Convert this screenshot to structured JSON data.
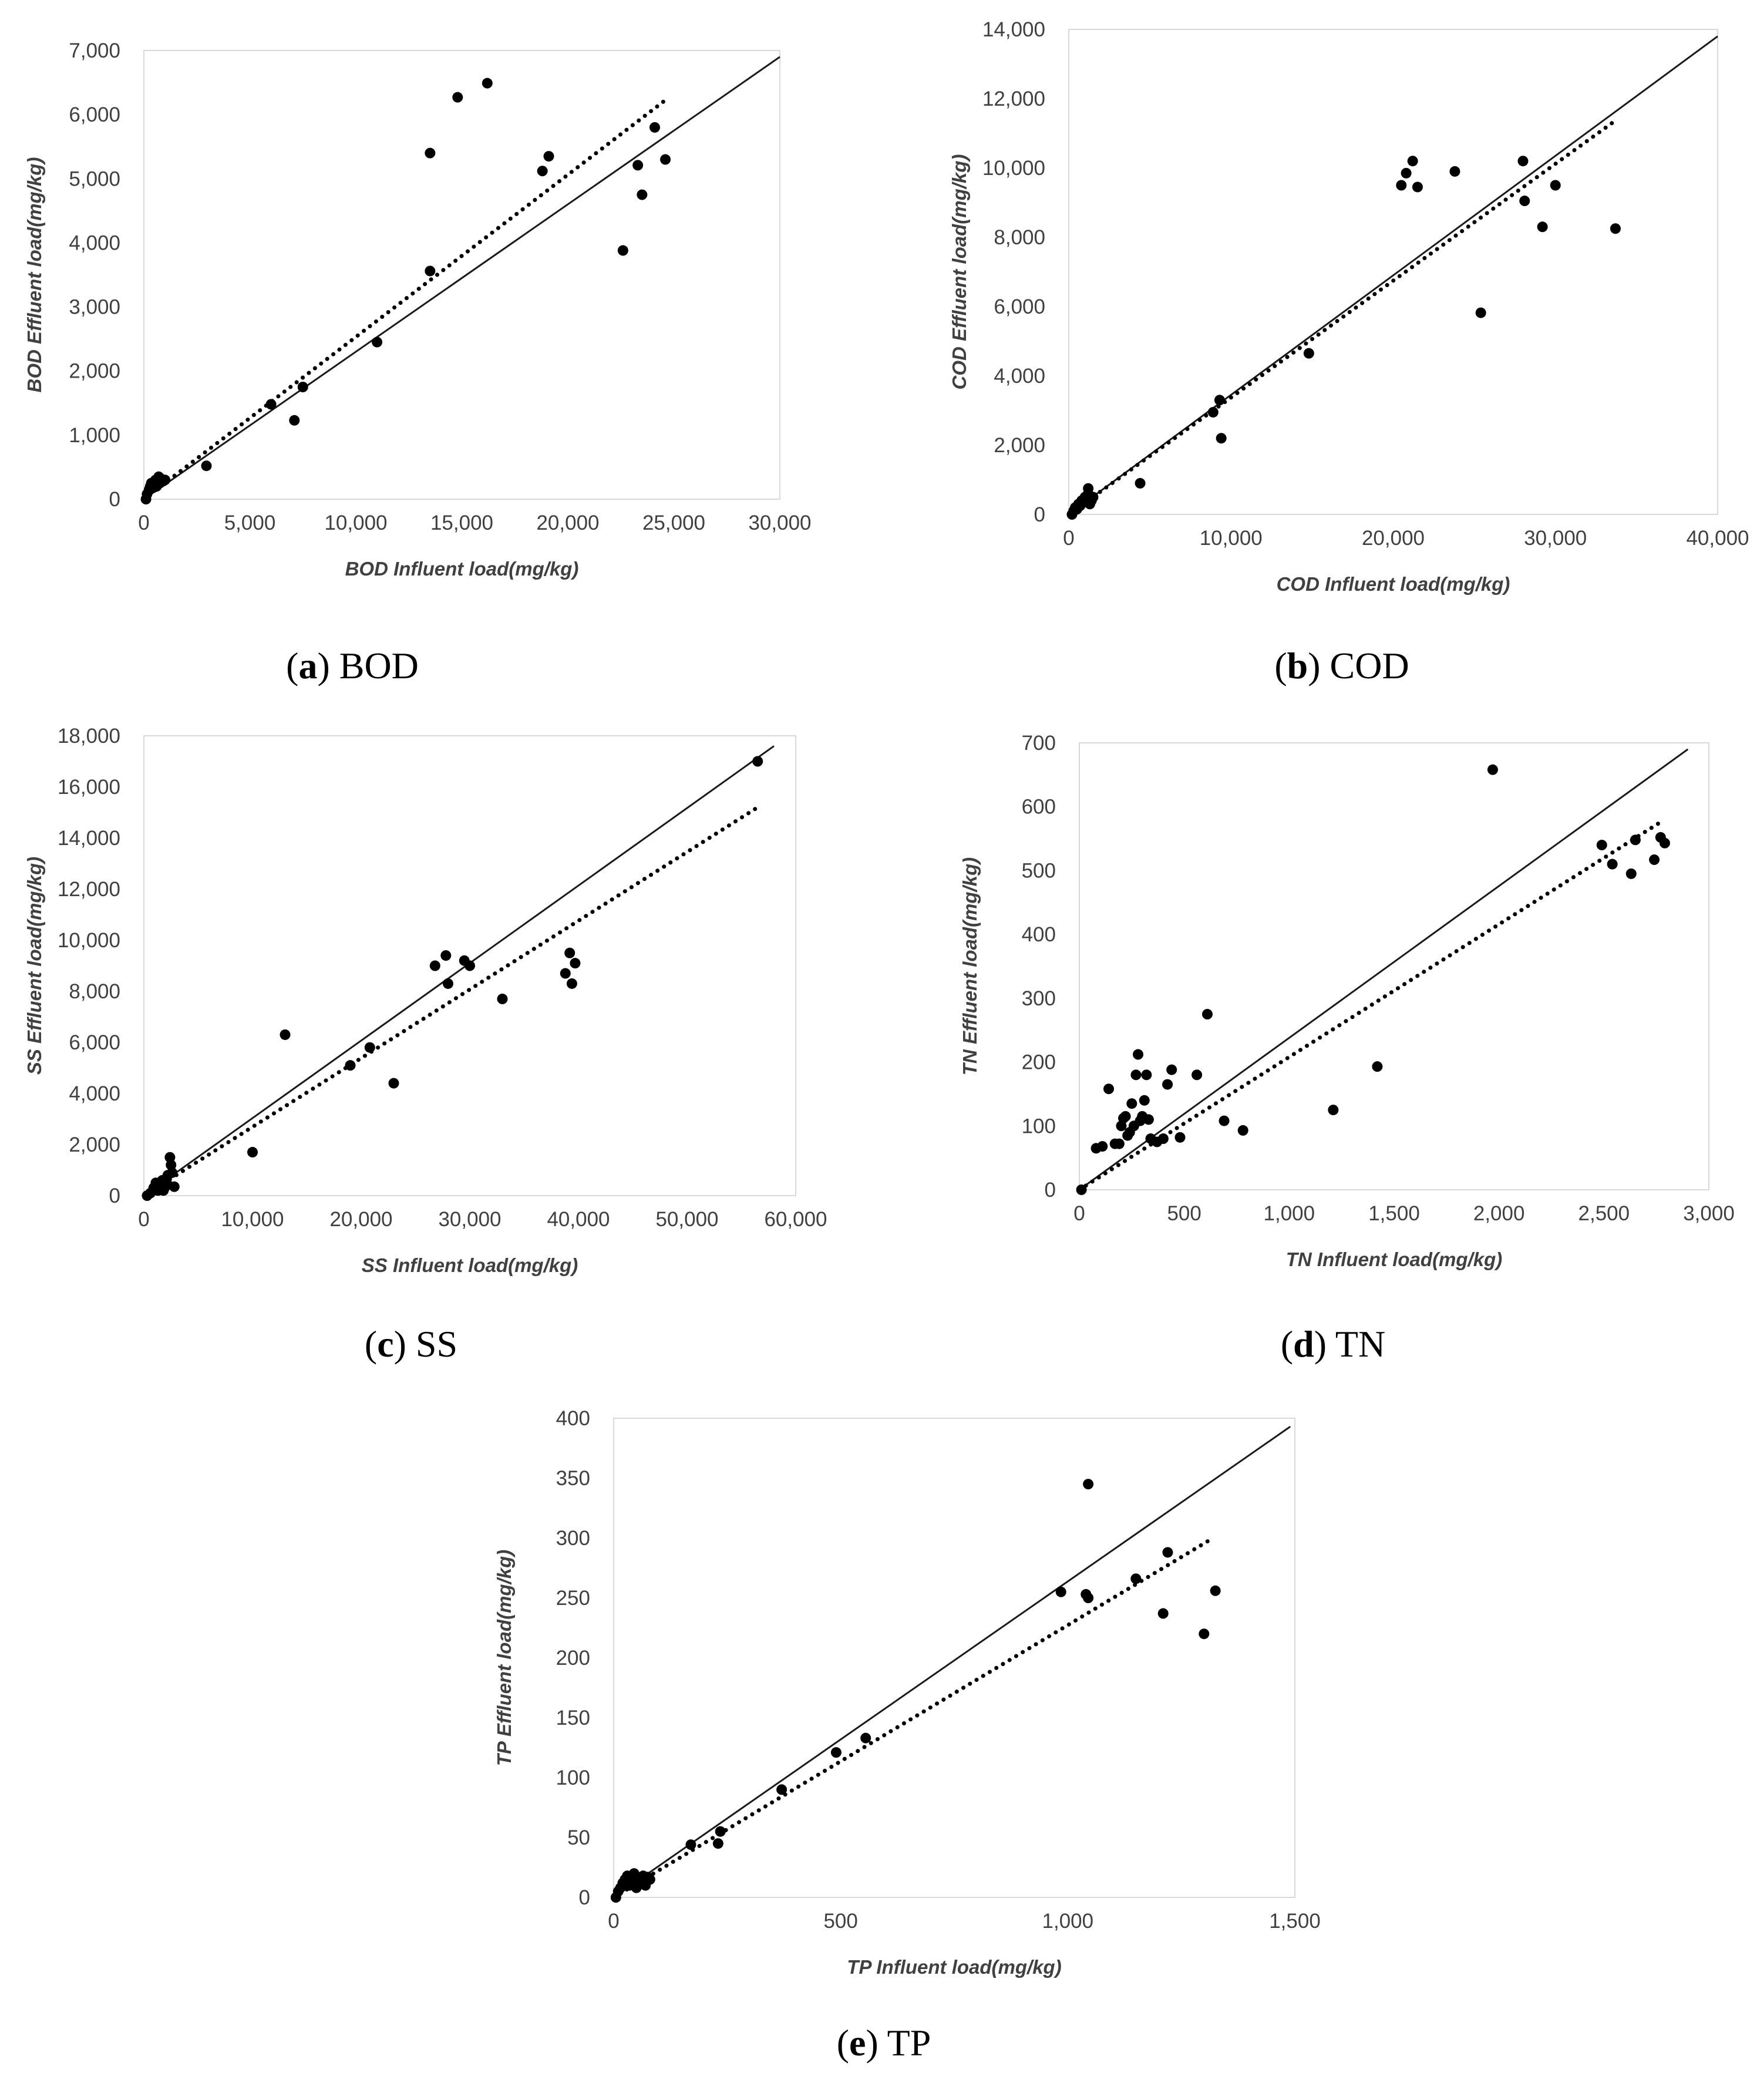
{
  "chart_data": [
    {
      "id": "bod",
      "type": "scatter",
      "caption": {
        "letter": "a",
        "text": "BOD"
      },
      "xlabel": "BOD Influent load(mg/kg)",
      "ylabel": "BOD Effluent load(mg/kg)",
      "xlim": [
        0,
        30000
      ],
      "ylim": [
        0,
        7000
      ],
      "xticks": [
        0,
        5000,
        10000,
        15000,
        20000,
        25000,
        30000
      ],
      "yticks": [
        0,
        1000,
        2000,
        3000,
        4000,
        5000,
        6000,
        7000
      ],
      "xtick_labels": [
        "0",
        "5,000",
        "10,000",
        "15,000",
        "20,000",
        "25,000",
        "30,000"
      ],
      "ytick_labels": [
        "0",
        "1,000",
        "2,000",
        "3,000",
        "4,000",
        "5,000",
        "6,000",
        "7,000"
      ],
      "reference_line": {
        "x": [
          0,
          30000
        ],
        "y": [
          0,
          6900
        ]
      },
      "trend_line": {
        "x": [
          0,
          24500
        ],
        "y": [
          0,
          6200
        ]
      },
      "points": [
        [
          100,
          0
        ],
        [
          150,
          80
        ],
        [
          250,
          150
        ],
        [
          300,
          200
        ],
        [
          350,
          250
        ],
        [
          450,
          180
        ],
        [
          500,
          250
        ],
        [
          550,
          300
        ],
        [
          600,
          200
        ],
        [
          650,
          280
        ],
        [
          700,
          350
        ],
        [
          750,
          250
        ],
        [
          800,
          320
        ],
        [
          900,
          280
        ],
        [
          1000,
          300
        ],
        [
          2950,
          520
        ],
        [
          6000,
          1480
        ],
        [
          7100,
          1230
        ],
        [
          7500,
          1750
        ],
        [
          11000,
          2450
        ],
        [
          13500,
          3560
        ],
        [
          13500,
          5400
        ],
        [
          14800,
          6270
        ],
        [
          16200,
          6490
        ],
        [
          18800,
          5120
        ],
        [
          19100,
          5350
        ],
        [
          22600,
          3880
        ],
        [
          23300,
          5210
        ],
        [
          23500,
          4750
        ],
        [
          24100,
          5800
        ],
        [
          24600,
          5300
        ]
      ]
    },
    {
      "id": "cod",
      "type": "scatter",
      "caption": {
        "letter": "b",
        "text": "COD"
      },
      "xlabel": "COD Influent load(mg/kg)",
      "ylabel": "COD Effluent load(mg/kg)",
      "xlim": [
        0,
        40000
      ],
      "ylim": [
        0,
        14000
      ],
      "xticks": [
        0,
        10000,
        20000,
        30000,
        40000
      ],
      "yticks": [
        0,
        2000,
        4000,
        6000,
        8000,
        10000,
        12000,
        14000
      ],
      "xtick_labels": [
        "0",
        "10,000",
        "20,000",
        "30,000",
        "40,000"
      ],
      "ytick_labels": [
        "0",
        "2,000",
        "4,000",
        "6,000",
        "8,000",
        "10,000",
        "12,000",
        "14,000"
      ],
      "reference_line": {
        "x": [
          0,
          40000
        ],
        "y": [
          0,
          13800
        ]
      },
      "trend_line": {
        "x": [
          0,
          33500
        ],
        "y": [
          0,
          11300
        ]
      },
      "points": [
        [
          200,
          0
        ],
        [
          300,
          100
        ],
        [
          400,
          200
        ],
        [
          500,
          150
        ],
        [
          600,
          300
        ],
        [
          700,
          250
        ],
        [
          800,
          400
        ],
        [
          900,
          350
        ],
        [
          1000,
          500
        ],
        [
          1100,
          450
        ],
        [
          1200,
          600
        ],
        [
          1300,
          300
        ],
        [
          1400,
          400
        ],
        [
          1500,
          500
        ],
        [
          1200,
          750
        ],
        [
          4400,
          900
        ],
        [
          8900,
          2950
        ],
        [
          9300,
          3300
        ],
        [
          9400,
          2200
        ],
        [
          14800,
          4650
        ],
        [
          20500,
          9500
        ],
        [
          20800,
          9850
        ],
        [
          21200,
          10200
        ],
        [
          21500,
          9450
        ],
        [
          23800,
          9900
        ],
        [
          25400,
          5820
        ],
        [
          28000,
          10200
        ],
        [
          28100,
          9050
        ],
        [
          29200,
          8300
        ],
        [
          30000,
          9500
        ],
        [
          33700,
          8250
        ]
      ]
    },
    {
      "id": "ss",
      "type": "scatter",
      "caption": {
        "letter": "c",
        "text": "SS"
      },
      "xlabel": "SS Influent load(mg/kg)",
      "ylabel": "SS Effluent load(mg/kg)",
      "xlim": [
        0,
        60000
      ],
      "ylim": [
        0,
        18000
      ],
      "xticks": [
        0,
        10000,
        20000,
        30000,
        40000,
        50000,
        60000
      ],
      "yticks": [
        0,
        2000,
        4000,
        6000,
        8000,
        10000,
        12000,
        14000,
        16000,
        18000
      ],
      "xtick_labels": [
        "0",
        "10,000",
        "20,000",
        "30,000",
        "40,000",
        "50,000",
        "60,000"
      ],
      "ytick_labels": [
        "0",
        "2,000",
        "4,000",
        "6,000",
        "8,000",
        "10,000",
        "12,000",
        "14,000",
        "16,000",
        "18,000"
      ],
      "reference_line": {
        "x": [
          0,
          58000
        ],
        "y": [
          0,
          17600
        ]
      },
      "trend_line": {
        "x": [
          0,
          56500
        ],
        "y": [
          0,
          15200
        ]
      },
      "points": [
        [
          300,
          0
        ],
        [
          600,
          100
        ],
        [
          900,
          300
        ],
        [
          1100,
          500
        ],
        [
          1300,
          200
        ],
        [
          1500,
          400
        ],
        [
          1700,
          600
        ],
        [
          1900,
          300
        ],
        [
          2100,
          500
        ],
        [
          2200,
          800
        ],
        [
          2400,
          1500
        ],
        [
          2500,
          1200
        ],
        [
          2600,
          900
        ],
        [
          2800,
          350
        ],
        [
          1800,
          200
        ],
        [
          10000,
          1700
        ],
        [
          13000,
          6300
        ],
        [
          19000,
          5100
        ],
        [
          20800,
          5800
        ],
        [
          23000,
          4400
        ],
        [
          26800,
          9000
        ],
        [
          27800,
          9400
        ],
        [
          28000,
          8300
        ],
        [
          29500,
          9200
        ],
        [
          30000,
          9000
        ],
        [
          33000,
          7700
        ],
        [
          38800,
          8700
        ],
        [
          39200,
          9500
        ],
        [
          39400,
          8300
        ],
        [
          39700,
          9100
        ],
        [
          56500,
          17000
        ]
      ]
    },
    {
      "id": "tn",
      "type": "scatter",
      "caption": {
        "letter": "d",
        "text": "TN"
      },
      "xlabel": "TN Influent load(mg/kg)",
      "ylabel": "TN Effluent load(mg/kg)",
      "xlim": [
        0,
        3000
      ],
      "ylim": [
        0,
        700
      ],
      "xticks": [
        0,
        500,
        1000,
        1500,
        2000,
        2500,
        3000
      ],
      "yticks": [
        0,
        100,
        200,
        300,
        400,
        500,
        600,
        700
      ],
      "xtick_labels": [
        "0",
        "500",
        "1,000",
        "1,500",
        "2,000",
        "2,500",
        "3,000"
      ],
      "ytick_labels": [
        "0",
        "100",
        "200",
        "300",
        "400",
        "500",
        "600",
        "700"
      ],
      "reference_line": {
        "x": [
          0,
          2900
        ],
        "y": [
          0,
          690
        ]
      },
      "trend_line": {
        "x": [
          0,
          2780
        ],
        "y": [
          0,
          578
        ]
      },
      "points": [
        [
          10,
          0
        ],
        [
          80,
          65
        ],
        [
          110,
          68
        ],
        [
          140,
          158
        ],
        [
          170,
          72
        ],
        [
          190,
          72
        ],
        [
          200,
          100
        ],
        [
          210,
          112
        ],
        [
          220,
          115
        ],
        [
          230,
          85
        ],
        [
          240,
          90
        ],
        [
          250,
          135
        ],
        [
          260,
          100
        ],
        [
          270,
          180
        ],
        [
          280,
          212
        ],
        [
          290,
          108
        ],
        [
          300,
          115
        ],
        [
          310,
          140
        ],
        [
          320,
          180
        ],
        [
          330,
          110
        ],
        [
          340,
          80
        ],
        [
          370,
          75
        ],
        [
          400,
          80
        ],
        [
          420,
          165
        ],
        [
          440,
          188
        ],
        [
          480,
          82
        ],
        [
          560,
          180
        ],
        [
          610,
          275
        ],
        [
          690,
          108
        ],
        [
          780,
          93
        ],
        [
          1210,
          125
        ],
        [
          1420,
          193
        ],
        [
          1970,
          658
        ],
        [
          2490,
          540
        ],
        [
          2540,
          510
        ],
        [
          2630,
          495
        ],
        [
          2650,
          548
        ],
        [
          2740,
          517
        ],
        [
          2770,
          552
        ],
        [
          2790,
          543
        ]
      ]
    },
    {
      "id": "tp",
      "type": "scatter",
      "caption": {
        "letter": "e",
        "text": "TP"
      },
      "xlabel": "TP Influent load(mg/kg)",
      "ylabel": "TP Effluent load(mg/kg)",
      "xlim": [
        0,
        1500
      ],
      "ylim": [
        0,
        400
      ],
      "xticks": [
        0,
        500,
        1000,
        1500
      ],
      "yticks": [
        0,
        50,
        100,
        150,
        200,
        250,
        300,
        350,
        400
      ],
      "xtick_labels": [
        "0",
        "500",
        "1,000",
        "1,500"
      ],
      "ytick_labels": [
        "0",
        "50",
        "100",
        "150",
        "200",
        "250",
        "300",
        "350",
        "400"
      ],
      "reference_line": {
        "x": [
          0,
          1490
        ],
        "y": [
          0,
          393
        ]
      },
      "trend_line": {
        "x": [
          0,
          1320
        ],
        "y": [
          0,
          300
        ]
      },
      "points": [
        [
          5,
          0
        ],
        [
          10,
          5
        ],
        [
          15,
          8
        ],
        [
          20,
          12
        ],
        [
          25,
          15
        ],
        [
          30,
          18
        ],
        [
          35,
          10
        ],
        [
          40,
          14
        ],
        [
          45,
          20
        ],
        [
          50,
          8
        ],
        [
          55,
          16
        ],
        [
          60,
          12
        ],
        [
          65,
          18
        ],
        [
          70,
          10
        ],
        [
          75,
          17
        ],
        [
          80,
          15
        ],
        [
          170,
          44
        ],
        [
          230,
          45
        ],
        [
          235,
          55
        ],
        [
          370,
          90
        ],
        [
          490,
          121
        ],
        [
          555,
          133
        ],
        [
          985,
          255
        ],
        [
          1040,
          253
        ],
        [
          1045,
          250
        ],
        [
          1045,
          345
        ],
        [
          1150,
          266
        ],
        [
          1210,
          237
        ],
        [
          1220,
          288
        ],
        [
          1300,
          220
        ],
        [
          1325,
          256
        ]
      ]
    }
  ]
}
